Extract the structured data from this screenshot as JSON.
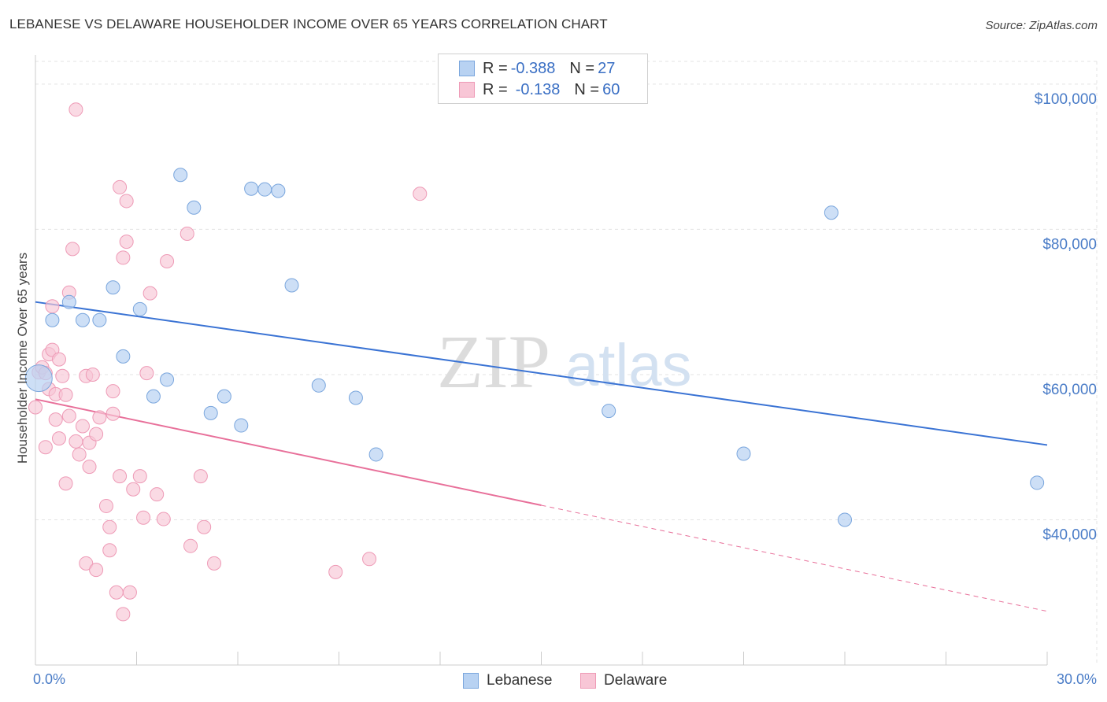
{
  "header": {
    "title": "LEBANESE VS DELAWARE HOUSEHOLDER INCOME OVER 65 YEARS CORRELATION CHART",
    "source": "Source: ZipAtlas.com"
  },
  "colors": {
    "lebanese_fill": "#b8d2f2",
    "lebanese_stroke": "#7aa6dd",
    "lebanese_line": "#3a73d4",
    "delaware_fill": "#f8c6d6",
    "delaware_stroke": "#ee9ab6",
    "delaware_line": "#e8709a",
    "tick_text": "#4a7cc7"
  },
  "legend": {
    "rows": [
      {
        "r_label": "R = ",
        "r_value": "-0.388",
        "n_label": "N = ",
        "n_value": "27"
      },
      {
        "r_label": "R = ",
        "r_value": "-0.138",
        "n_label": "N = ",
        "n_value": "60"
      }
    ]
  },
  "watermark": {
    "zip": "ZIP",
    "atlas": "atlas"
  },
  "chart_data": {
    "type": "scatter",
    "title": "LEBANESE VS DELAWARE HOUSEHOLDER INCOME OVER 65 YEARS CORRELATION CHART",
    "xlabel": "",
    "ylabel": "Householder Income Over 65 years",
    "xlim": [
      0,
      30
    ],
    "ylim": [
      20000,
      104000
    ],
    "x_tick_labels": [
      "0.0%",
      "30.0%"
    ],
    "y_ticks": [
      {
        "value": 40000,
        "label": "$40,000"
      },
      {
        "value": 60000,
        "label": "$60,000"
      },
      {
        "value": 80000,
        "label": "$80,000"
      },
      {
        "value": 100000,
        "label": "$100,000"
      }
    ],
    "grid": true,
    "series": [
      {
        "name": "Lebanese",
        "color": "#7aa6dd",
        "points": [
          [
            0.1,
            59500
          ],
          [
            0.5,
            67500
          ],
          [
            1.0,
            70000
          ],
          [
            1.4,
            67500
          ],
          [
            1.9,
            67500
          ],
          [
            2.3,
            72000
          ],
          [
            2.6,
            62500
          ],
          [
            3.1,
            69000
          ],
          [
            3.5,
            57000
          ],
          [
            3.9,
            59300
          ],
          [
            4.3,
            87500
          ],
          [
            4.7,
            83000
          ],
          [
            5.2,
            54700
          ],
          [
            5.6,
            57000
          ],
          [
            6.1,
            53000
          ],
          [
            6.4,
            85600
          ],
          [
            6.8,
            85500
          ],
          [
            7.2,
            85300
          ],
          [
            7.6,
            72300
          ],
          [
            8.4,
            58500
          ],
          [
            9.5,
            56800
          ],
          [
            10.1,
            49000
          ],
          [
            17.0,
            55000
          ],
          [
            21.0,
            49100
          ],
          [
            23.6,
            82300
          ],
          [
            24.0,
            40000
          ],
          [
            29.7,
            45100
          ]
        ],
        "trend": {
          "x0": 0,
          "y0": 70000,
          "x1": 30,
          "y1": 50300
        }
      },
      {
        "name": "Delaware",
        "color": "#ee9ab6",
        "points": [
          [
            0.0,
            55500
          ],
          [
            0.1,
            60300
          ],
          [
            0.2,
            61000
          ],
          [
            0.3,
            50000
          ],
          [
            0.4,
            58000
          ],
          [
            0.4,
            62800
          ],
          [
            0.5,
            63400
          ],
          [
            0.5,
            69400
          ],
          [
            0.6,
            57300
          ],
          [
            0.6,
            53800
          ],
          [
            0.7,
            62100
          ],
          [
            0.7,
            51200
          ],
          [
            0.8,
            59800
          ],
          [
            0.9,
            45000
          ],
          [
            0.9,
            57200
          ],
          [
            1.0,
            54300
          ],
          [
            1.0,
            71300
          ],
          [
            1.1,
            77300
          ],
          [
            1.2,
            50800
          ],
          [
            1.3,
            49000
          ],
          [
            1.4,
            52900
          ],
          [
            1.5,
            34000
          ],
          [
            1.5,
            59800
          ],
          [
            1.6,
            47300
          ],
          [
            1.6,
            50600
          ],
          [
            1.7,
            60000
          ],
          [
            1.8,
            51800
          ],
          [
            1.8,
            33100
          ],
          [
            1.9,
            54100
          ],
          [
            2.1,
            41900
          ],
          [
            2.2,
            35800
          ],
          [
            2.2,
            39000
          ],
          [
            2.3,
            57700
          ],
          [
            2.3,
            54600
          ],
          [
            2.4,
            30000
          ],
          [
            2.5,
            85800
          ],
          [
            2.5,
            46000
          ],
          [
            2.6,
            27000
          ],
          [
            2.6,
            76100
          ],
          [
            2.7,
            78300
          ],
          [
            2.7,
            83900
          ],
          [
            2.8,
            30000
          ],
          [
            2.9,
            44200
          ],
          [
            3.1,
            46000
          ],
          [
            3.2,
            40300
          ],
          [
            3.3,
            60200
          ],
          [
            3.4,
            71200
          ],
          [
            3.6,
            43500
          ],
          [
            3.8,
            40100
          ],
          [
            3.9,
            75600
          ],
          [
            4.5,
            79400
          ],
          [
            4.6,
            36400
          ],
          [
            4.9,
            46000
          ],
          [
            5.0,
            39000
          ],
          [
            5.3,
            34000
          ],
          [
            8.9,
            32800
          ],
          [
            9.9,
            34600
          ],
          [
            11.4,
            84900
          ],
          [
            1.2,
            96500
          ],
          [
            0.3,
            60200
          ]
        ],
        "trend_solid": {
          "x0": 0,
          "y0": 56600,
          "x1": 15,
          "y1": 42000
        },
        "trend_dashed": {
          "x0": 15,
          "y0": 42000,
          "x1": 30,
          "y1": 27400
        }
      }
    ],
    "bottom_legend": [
      "Lebanese",
      "Delaware"
    ]
  }
}
